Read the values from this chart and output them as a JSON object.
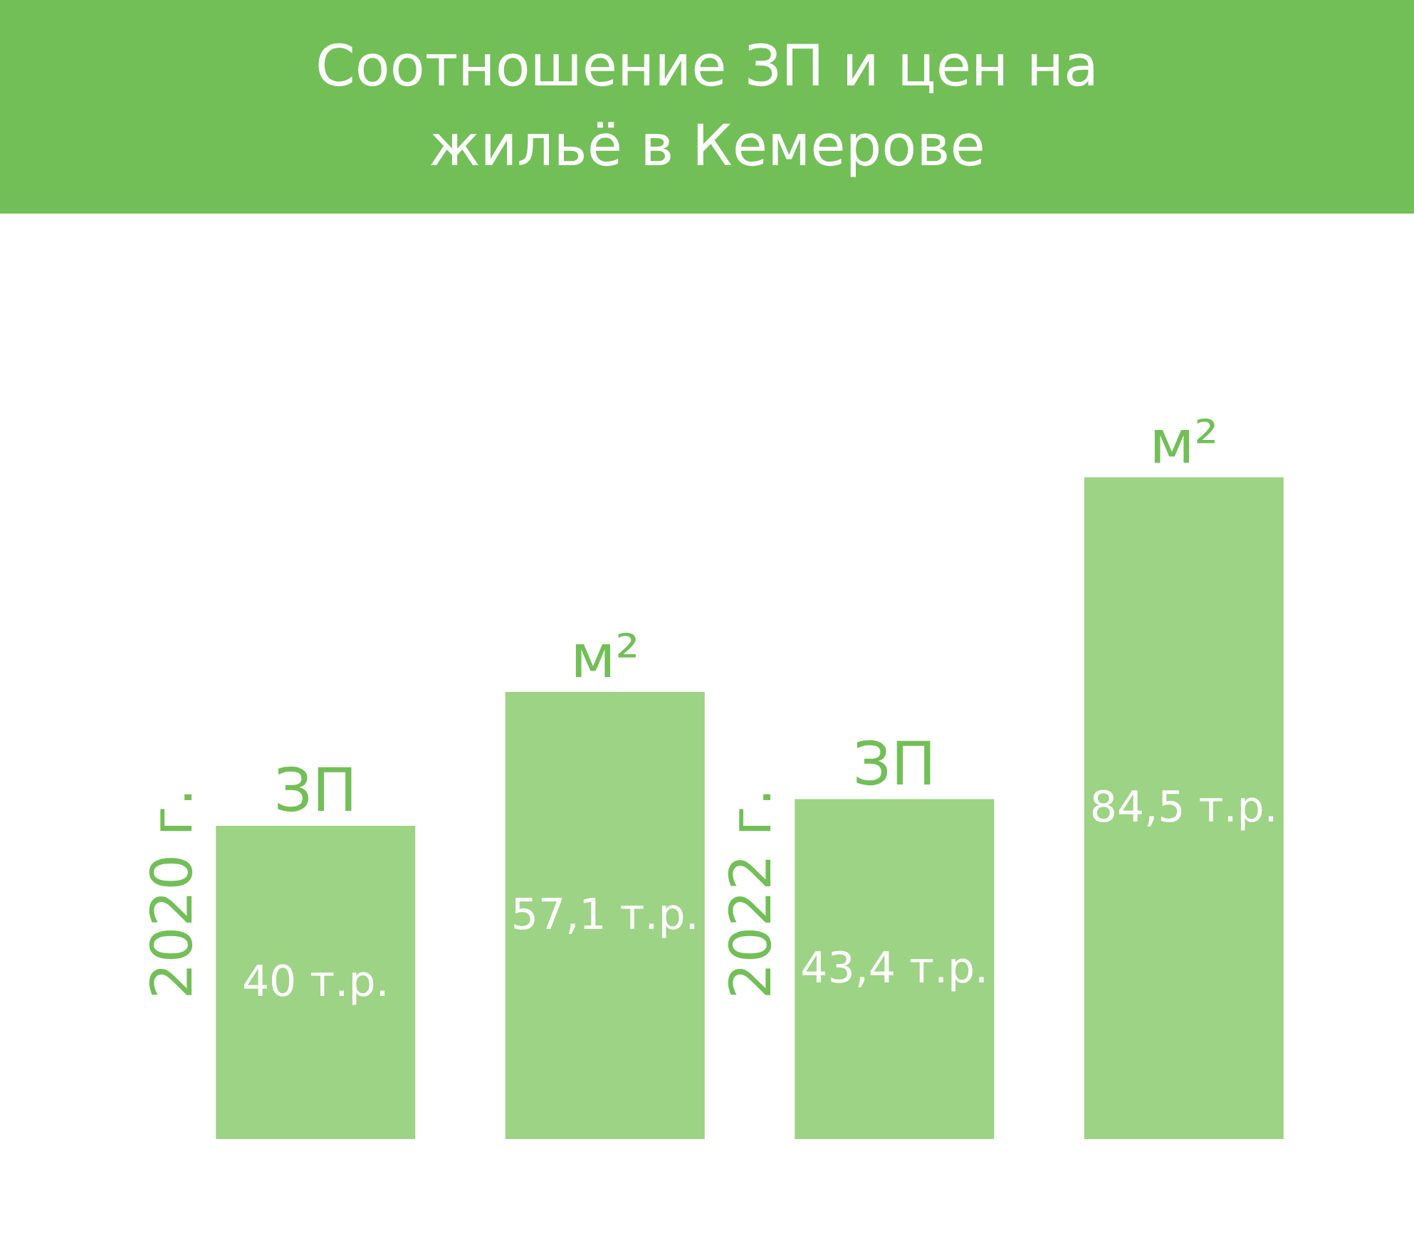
{
  "chart_data": {
    "type": "bar",
    "title": "Соотношение ЗП и цен на жильё в Кемерове",
    "categories": [
      "ЗП",
      "м²",
      "ЗП",
      "м²"
    ],
    "values": [
      40,
      57.1,
      43.4,
      84.5
    ],
    "value_labels": [
      "40 т.р.",
      "57,1 т.р.",
      "43,4 т.р.",
      "84,5 т.р."
    ],
    "color": "#9dd384",
    "annotations": [
      "2020 г.",
      "2022 г."
    ]
  }
}
